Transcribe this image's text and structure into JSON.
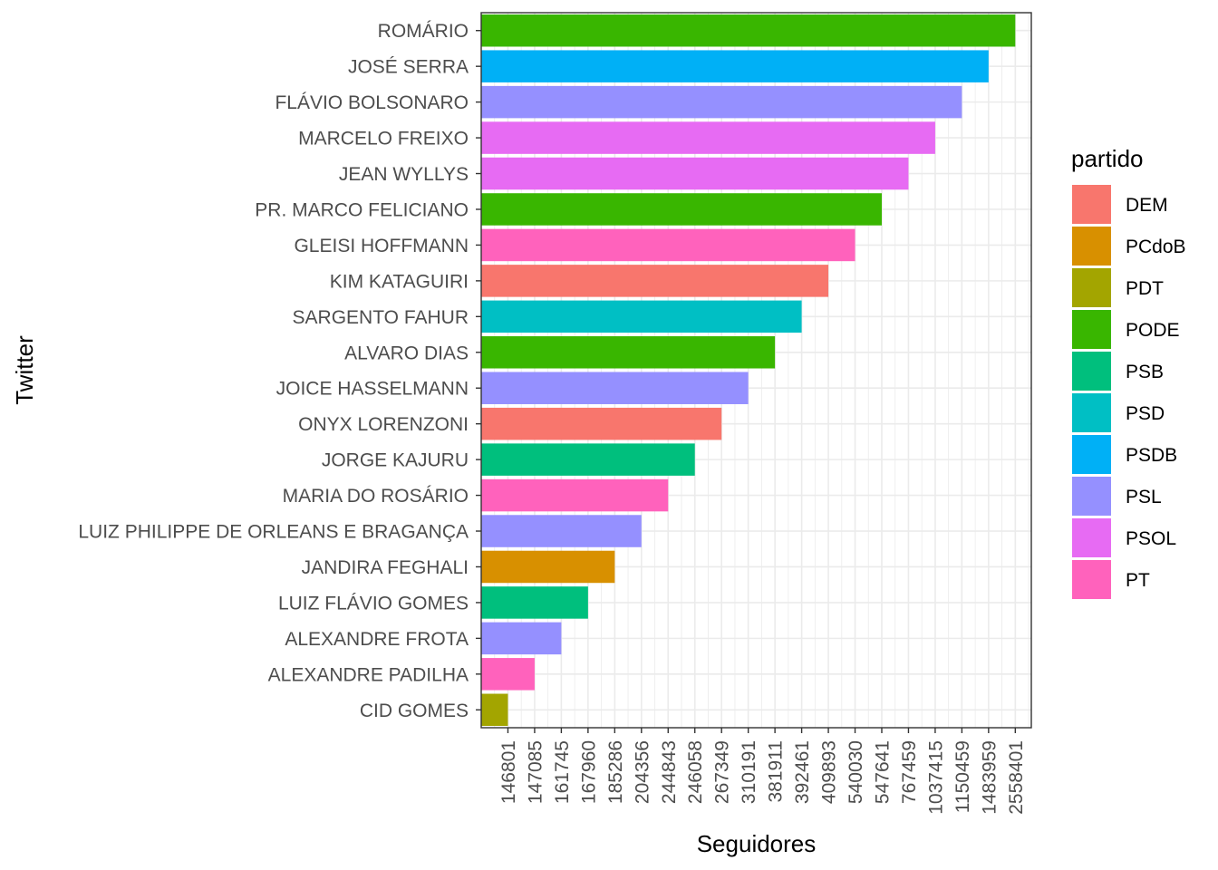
{
  "chart_data": {
    "type": "bar",
    "orientation": "horizontal",
    "xlabel": "Seguidores",
    "ylabel": "Twitter",
    "legend_title": "partido",
    "legend_position": "right",
    "grid": true,
    "x_scale": "discrete (each tick is one follower value, ordered)",
    "x_ticks": [
      "146801",
      "147085",
      "161745",
      "167960",
      "185286",
      "204356",
      "244843",
      "246058",
      "267349",
      "310191",
      "381911",
      "392461",
      "409893",
      "540030",
      "547641",
      "767459",
      "1037415",
      "1150459",
      "1483959",
      "2558401"
    ],
    "categories": [
      "ROMÁRIO",
      "JOSÉ SERRA",
      "FLÁVIO BOLSONARO",
      "MARCELO FREIXO",
      "JEAN WYLLYS",
      "PR. MARCO FELICIANO",
      "GLEISI HOFFMANN",
      "KIM KATAGUIRI",
      "SARGENTO FAHUR",
      "ALVARO DIAS",
      "JOICE HASSELMANN",
      "ONYX LORENZONI",
      "JORGE KAJURU",
      "MARIA DO ROSÁRIO",
      "LUIZ PHILIPPE DE ORLEANS E BRAGANÇA",
      "JANDIRA FEGHALI",
      "LUIZ FLÁVIO GOMES",
      "ALEXANDRE FROTA",
      "ALEXANDRE PADILHA",
      "CID GOMES"
    ],
    "values": [
      2558401,
      1483959,
      1150459,
      1037415,
      767459,
      547641,
      540030,
      409893,
      392461,
      381911,
      310191,
      267349,
      246058,
      244843,
      204356,
      185286,
      167960,
      161745,
      147085,
      146801
    ],
    "partido": [
      "PODE",
      "PSDB",
      "PSL",
      "PSOL",
      "PSOL",
      "PODE",
      "PT",
      "DEM",
      "PSD",
      "PODE",
      "PSL",
      "DEM",
      "PSB",
      "PT",
      "PSL",
      "PCdoB",
      "PSB",
      "PSL",
      "PT",
      "PDT"
    ],
    "legend": [
      {
        "name": "DEM",
        "color": "#F8766D"
      },
      {
        "name": "PCdoB",
        "color": "#D89000"
      },
      {
        "name": "PDT",
        "color": "#A3A500"
      },
      {
        "name": "PODE",
        "color": "#39B600"
      },
      {
        "name": "PSB",
        "color": "#00BF7D"
      },
      {
        "name": "PSD",
        "color": "#00BFC4"
      },
      {
        "name": "PSDB",
        "color": "#00B0F6"
      },
      {
        "name": "PSL",
        "color": "#9590FF"
      },
      {
        "name": "PSOL",
        "color": "#E76BF3"
      },
      {
        "name": "PT",
        "color": "#FF62BC"
      }
    ]
  }
}
